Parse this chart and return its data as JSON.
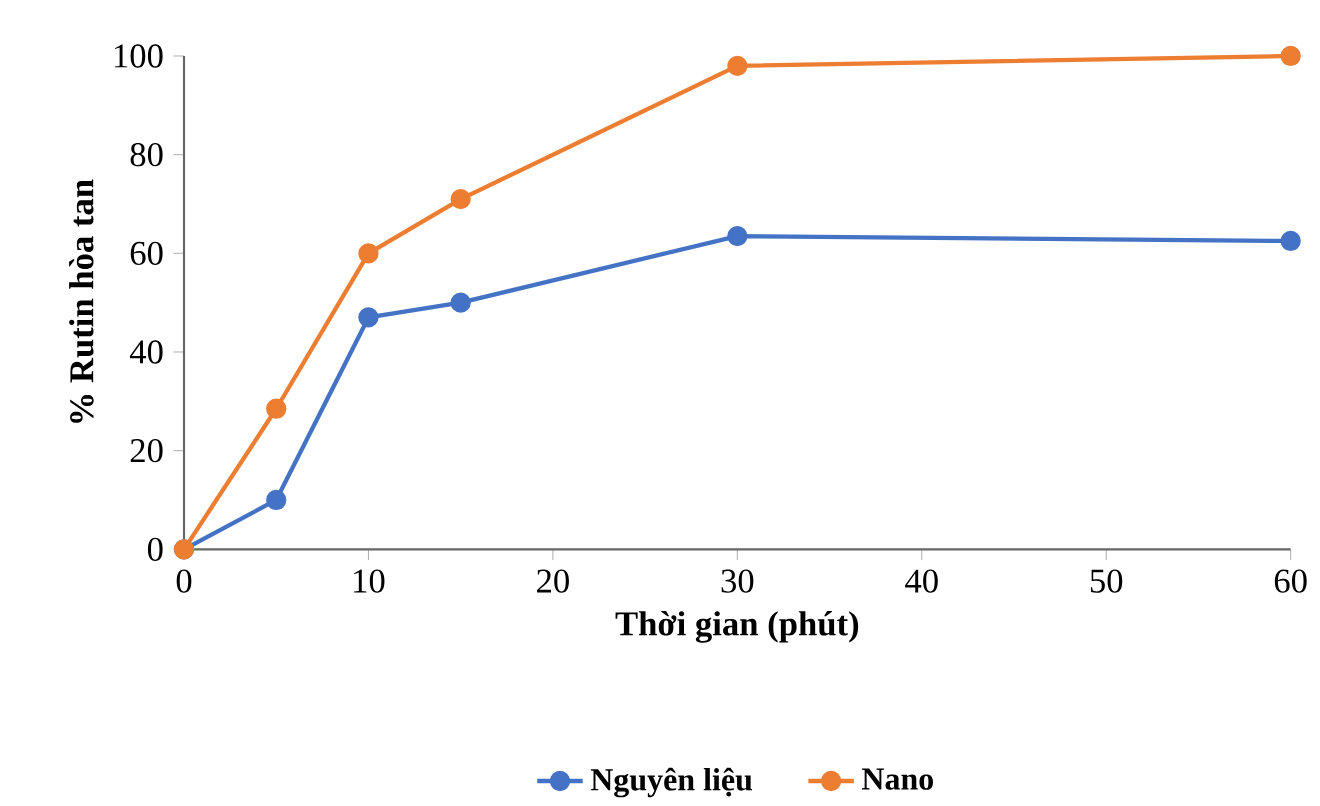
{
  "chart_data": {
    "type": "line",
    "xlabel": "Thời gian (phút)",
    "ylabel": "% Rutin hòa tan",
    "x": [
      0,
      5,
      10,
      15,
      30,
      60
    ],
    "series": [
      {
        "name": "Nguyên liệu",
        "color": "#4472c4",
        "values": [
          0,
          10,
          47,
          50,
          63.5,
          62.5
        ]
      },
      {
        "name": "Nano",
        "color": "#ed7d31",
        "values": [
          0,
          28.5,
          60,
          71,
          98,
          100
        ]
      }
    ],
    "xlim": [
      0,
      60
    ],
    "xticks": [
      0,
      10,
      20,
      30,
      40,
      50,
      60
    ],
    "ylim": [
      0,
      100
    ],
    "yticks": [
      0,
      20,
      40,
      60,
      80,
      100
    ],
    "grid": false,
    "legend": "bottom",
    "marker": "circle",
    "line_style": "solid"
  }
}
